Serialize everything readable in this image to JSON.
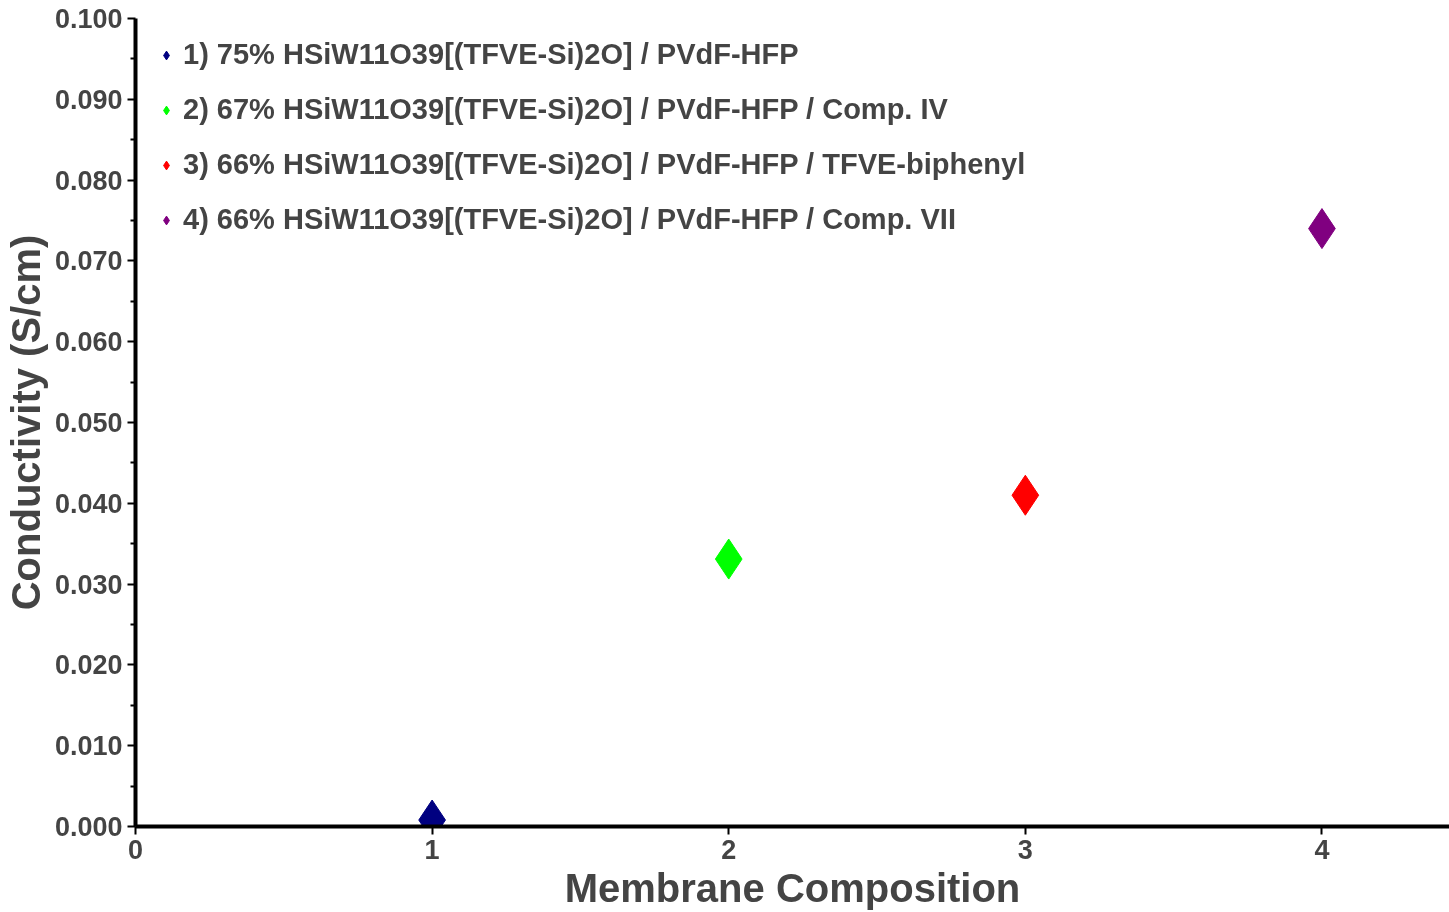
{
  "chart_data": {
    "type": "scatter",
    "xlabel": "Membrane Composition",
    "ylabel": "Conductivity (S/cm)",
    "xlim": [
      0,
      4.43
    ],
    "xticks": [
      0,
      1,
      2,
      3,
      4
    ],
    "ylim": [
      0,
      0.1
    ],
    "yticks": [
      {
        "value": 0,
        "label": "0.000"
      },
      {
        "value": 0.005,
        "label": null
      },
      {
        "value": 0.01,
        "label": "0.010"
      },
      {
        "value": 0.015,
        "label": null
      },
      {
        "value": 0.02,
        "label": "0.020"
      },
      {
        "value": 0.025,
        "label": null
      },
      {
        "value": 0.03,
        "label": "0.030"
      },
      {
        "value": 0.035,
        "label": null
      },
      {
        "value": 0.04,
        "label": "0.040"
      },
      {
        "value": 0.045,
        "label": null
      },
      {
        "value": 0.05,
        "label": "0.050"
      },
      {
        "value": 0.055,
        "label": null
      },
      {
        "value": 0.06,
        "label": "0.060"
      },
      {
        "value": 0.065,
        "label": null
      },
      {
        "value": 0.07,
        "label": "0.070"
      },
      {
        "value": 0.075,
        "label": null
      },
      {
        "value": 0.08,
        "label": "0.080"
      },
      {
        "value": 0.085,
        "label": null
      },
      {
        "value": 0.09,
        "label": "0.090"
      },
      {
        "value": 0.095,
        "label": null
      },
      {
        "value": 0.1,
        "label": "0.100"
      }
    ],
    "grid": false,
    "legend": "top left",
    "marker": "diamond",
    "series": [
      {
        "name": "1) 75% HSiW11O39[(TFVE-Si)2O] / PVdF-HFP",
        "color": "#000080",
        "x": [
          1
        ],
        "values": [
          0.0008
        ]
      },
      {
        "name": "2) 67% HSiW11O39[(TFVE-Si)2O] / PVdF-HFP / Comp. IV",
        "color": "#00ff00",
        "x": [
          2
        ],
        "values": [
          0.0331
        ]
      },
      {
        "name": "3) 66% HSiW11O39[(TFVE-Si)2O] / PVdF-HFP / TFVE-biphenyl",
        "color": "#ff0000",
        "x": [
          3
        ],
        "values": [
          0.041
        ]
      },
      {
        "name": "4) 66% HSiW11O39[(TFVE-Si)2O] / PVdF-HFP / Comp. VII",
        "color": "#800080",
        "x": [
          4
        ],
        "values": [
          0.074
        ]
      }
    ]
  }
}
